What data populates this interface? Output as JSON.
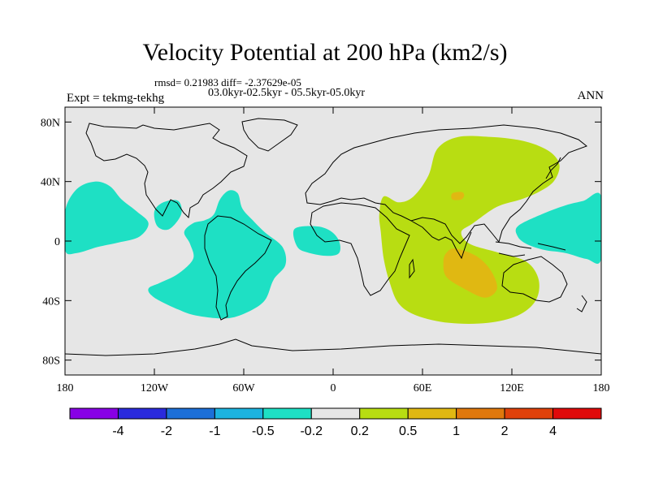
{
  "chart_data": {
    "type": "contour-map",
    "title": "Velocity Potential at 200 hPa (km2/s)",
    "stats_line": "rmsd= 0.21983 diff= -2.37629e-05",
    "experiment_label": "Expt = tekmg-tekhg",
    "period_label": "03.0kyr-02.5kyr - 05.5kyr-05.0kyr",
    "season": "ANN",
    "lon_range": [
      -180,
      180
    ],
    "lat_range": [
      -90,
      90
    ],
    "x_ticks": [
      {
        "lon": -180,
        "label": "180"
      },
      {
        "lon": -120,
        "label": "120W"
      },
      {
        "lon": -60,
        "label": "60W"
      },
      {
        "lon": 0,
        "label": "0"
      },
      {
        "lon": 60,
        "label": "60E"
      },
      {
        "lon": 120,
        "label": "120E"
      },
      {
        "lon": 180,
        "label": "180"
      }
    ],
    "y_ticks": [
      {
        "lat": 80,
        "label": "80N"
      },
      {
        "lat": 40,
        "label": "40N"
      },
      {
        "lat": 0,
        "label": "0"
      },
      {
        "lat": -40,
        "label": "40S"
      },
      {
        "lat": -80,
        "label": "80S"
      }
    ],
    "colorbar": {
      "colors": [
        "#8800e6",
        "#2a2add",
        "#1c6fd8",
        "#1cb3e0",
        "#1ee0c4",
        "#e6e6e6",
        "#b8dd12",
        "#e0b812",
        "#e0780c",
        "#e0410a",
        "#e00a0a"
      ],
      "labels": [
        "-4",
        "-2",
        "-1",
        "-0.5",
        "-0.2",
        "0.2",
        "0.5",
        "1",
        "2",
        "4"
      ]
    },
    "regions": [
      {
        "name": "north-pacific-negative",
        "level": "-0.5 to -0.2",
        "color": "#1ee0c4",
        "points": [
          [
            -180,
            20
          ],
          [
            -172,
            35
          ],
          [
            -160,
            40
          ],
          [
            -150,
            37
          ],
          [
            -142,
            28
          ],
          [
            -132,
            20
          ],
          [
            -124,
            12
          ],
          [
            -130,
            3
          ],
          [
            -144,
            -1
          ],
          [
            -158,
            -4
          ],
          [
            -172,
            -8
          ],
          [
            -180,
            -6
          ]
        ]
      },
      {
        "name": "central-america-negative",
        "level": "-0.5 to -0.2",
        "color": "#1ee0c4",
        "points": [
          [
            -120,
            20
          ],
          [
            -114,
            26
          ],
          [
            -104,
            27
          ],
          [
            -102,
            18
          ],
          [
            -110,
            8
          ],
          [
            -118,
            10
          ]
        ]
      },
      {
        "name": "south-america-negative",
        "level": "-0.5 to -0.2",
        "color": "#1ee0c4",
        "points": [
          [
            -100,
            6
          ],
          [
            -94,
            12
          ],
          [
            -86,
            14
          ],
          [
            -80,
            18
          ],
          [
            -76,
            28
          ],
          [
            -70,
            34
          ],
          [
            -64,
            32
          ],
          [
            -61,
            22
          ],
          [
            -54,
            14
          ],
          [
            -46,
            6
          ],
          [
            -34,
            -4
          ],
          [
            -32,
            -16
          ],
          [
            -40,
            -26
          ],
          [
            -46,
            -40
          ],
          [
            -58,
            -48
          ],
          [
            -72,
            -52
          ],
          [
            -92,
            -50
          ],
          [
            -104,
            -46
          ],
          [
            -120,
            -38
          ],
          [
            -124,
            -32
          ],
          [
            -116,
            -28
          ],
          [
            -104,
            -22
          ],
          [
            -94,
            -12
          ],
          [
            -96,
            -2
          ]
        ]
      },
      {
        "name": "atlantic-negative",
        "level": "-0.5 to -0.2",
        "color": "#1ee0c4",
        "points": [
          [
            -26,
            8
          ],
          [
            -12,
            10
          ],
          [
            -2,
            7
          ],
          [
            4,
            0
          ],
          [
            4,
            -8
          ],
          [
            -4,
            -10
          ],
          [
            -16,
            -8
          ],
          [
            -24,
            -4
          ]
        ]
      },
      {
        "name": "west-pacific-negative",
        "level": "-0.5 to -0.2",
        "color": "#1ee0c4",
        "points": [
          [
            124,
            10
          ],
          [
            140,
            18
          ],
          [
            156,
            24
          ],
          [
            168,
            27
          ],
          [
            180,
            30
          ],
          [
            180,
            -12
          ],
          [
            170,
            -12
          ],
          [
            156,
            -8
          ],
          [
            142,
            -6
          ],
          [
            130,
            -2
          ],
          [
            124,
            3
          ]
        ]
      },
      {
        "name": "indian-asia-positive",
        "level": "0.2 to 0.5",
        "color": "#b8dd12",
        "points": [
          [
            34,
            30
          ],
          [
            44,
            26
          ],
          [
            54,
            30
          ],
          [
            64,
            44
          ],
          [
            70,
            62
          ],
          [
            84,
            70
          ],
          [
            106,
            70
          ],
          [
            124,
            68
          ],
          [
            138,
            64
          ],
          [
            148,
            58
          ],
          [
            152,
            50
          ],
          [
            148,
            40
          ],
          [
            138,
            33
          ],
          [
            126,
            28
          ],
          [
            110,
            23
          ],
          [
            94,
            12
          ],
          [
            86,
            6
          ],
          [
            92,
            -2
          ],
          [
            112,
            -8
          ],
          [
            130,
            -14
          ],
          [
            138,
            -26
          ],
          [
            136,
            -40
          ],
          [
            124,
            -50
          ],
          [
            104,
            -55
          ],
          [
            78,
            -55
          ],
          [
            56,
            -50
          ],
          [
            44,
            -42
          ],
          [
            38,
            -28
          ],
          [
            34,
            -12
          ],
          [
            32,
            6
          ],
          [
            31,
            18
          ]
        ]
      },
      {
        "name": "india-core-positive",
        "level": "0.5 to 1",
        "color": "#e0b812",
        "points": [
          [
            80,
            32
          ],
          [
            86,
            33
          ],
          [
            88,
            31
          ],
          [
            86,
            28
          ],
          [
            80,
            28
          ]
        ]
      },
      {
        "name": "indian-ocean-core-positive",
        "level": "0.5 to 1",
        "color": "#e0b812",
        "points": [
          [
            76,
            -8
          ],
          [
            82,
            -5
          ],
          [
            96,
            -10
          ],
          [
            106,
            -20
          ],
          [
            110,
            -32
          ],
          [
            102,
            -38
          ],
          [
            88,
            -32
          ],
          [
            76,
            -24
          ],
          [
            74,
            -14
          ]
        ]
      }
    ]
  }
}
